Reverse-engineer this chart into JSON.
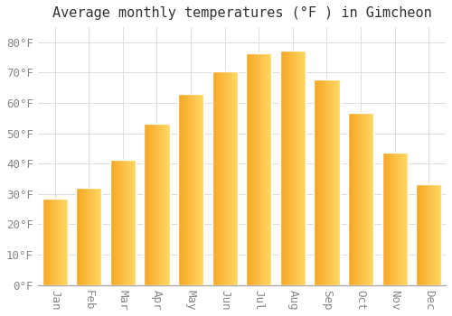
{
  "title": "Average monthly temperatures (°F ) in Gimcheon",
  "months": [
    "Jan",
    "Feb",
    "Mar",
    "Apr",
    "May",
    "Jun",
    "Jul",
    "Aug",
    "Sep",
    "Oct",
    "Nov",
    "Dec"
  ],
  "values": [
    28.4,
    32.0,
    41.2,
    53.2,
    63.0,
    70.5,
    76.3,
    77.2,
    67.8,
    56.7,
    43.7,
    33.1
  ],
  "bar_color_bottom": "#F5A623",
  "bar_color_top": "#FFD966",
  "bar_edge_color": "#FFFFFF",
  "background_color": "#FFFFFF",
  "grid_color": "#DDDDDD",
  "text_color": "#888888",
  "ylim": [
    0,
    85
  ],
  "yticks": [
    0,
    10,
    20,
    30,
    40,
    50,
    60,
    70,
    80
  ],
  "title_fontsize": 11,
  "tick_fontsize": 9,
  "bar_width": 0.75
}
